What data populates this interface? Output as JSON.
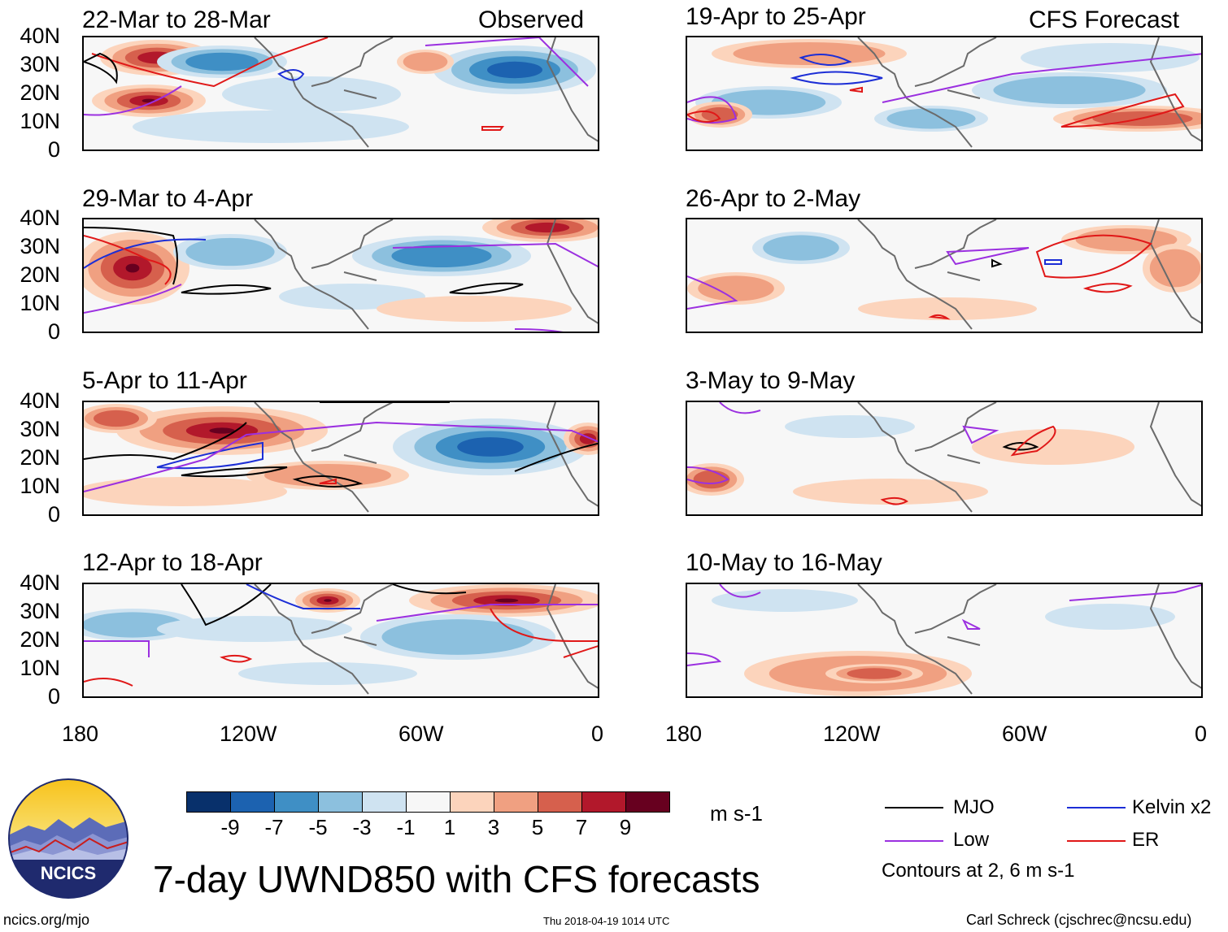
{
  "panels": [
    {
      "id": "obs1",
      "title": "22-Mar to 28-Mar",
      "tag": "Observed"
    },
    {
      "id": "obs2",
      "title": "29-Mar to 4-Apr",
      "tag": ""
    },
    {
      "id": "obs3",
      "title": "5-Apr to 11-Apr",
      "tag": ""
    },
    {
      "id": "obs4",
      "title": "12-Apr to 18-Apr",
      "tag": ""
    },
    {
      "id": "fc1",
      "title": "19-Apr to 25-Apr",
      "tag": "CFS Forecast"
    },
    {
      "id": "fc2",
      "title": "26-Apr to 2-May",
      "tag": ""
    },
    {
      "id": "fc3",
      "title": "3-May to 9-May",
      "tag": ""
    },
    {
      "id": "fc4",
      "title": "10-May to 16-May",
      "tag": ""
    }
  ],
  "lat_labels": [
    "40N",
    "30N",
    "20N",
    "10N",
    "0"
  ],
  "lon_labels": [
    "180",
    "120W",
    "60W",
    "0"
  ],
  "colorbar": {
    "ticks": [
      "-9",
      "-7",
      "-5",
      "-3",
      "-1",
      "1",
      "3",
      "5",
      "7",
      "9"
    ],
    "colors": [
      "#08306b",
      "#1c62b0",
      "#3f8fc5",
      "#8cc0de",
      "#cfe3f1",
      "#f7f7f7",
      "#fcd4bc",
      "#f0a081",
      "#d6604d",
      "#b2182b",
      "#67001f"
    ],
    "units": "m s-1"
  },
  "legend": {
    "items": [
      {
        "label": "MJO",
        "color": "#000000"
      },
      {
        "label": "Kelvin x2",
        "color": "#1c2ed6"
      },
      {
        "label": "Low",
        "color": "#9b30e0"
      },
      {
        "label": "ER",
        "color": "#e01818"
      }
    ],
    "note": "Contours at 2, 6 m s-1"
  },
  "title": "7-day UWND850 with CFS forecasts",
  "logo_text": "NCICS",
  "footer": {
    "url": "ncics.org/mjo",
    "timestamp": "Thu 2018-04-19 1014 UTC",
    "credit": "Carl Schreck (cjschrec@ncsu.edu)"
  }
}
